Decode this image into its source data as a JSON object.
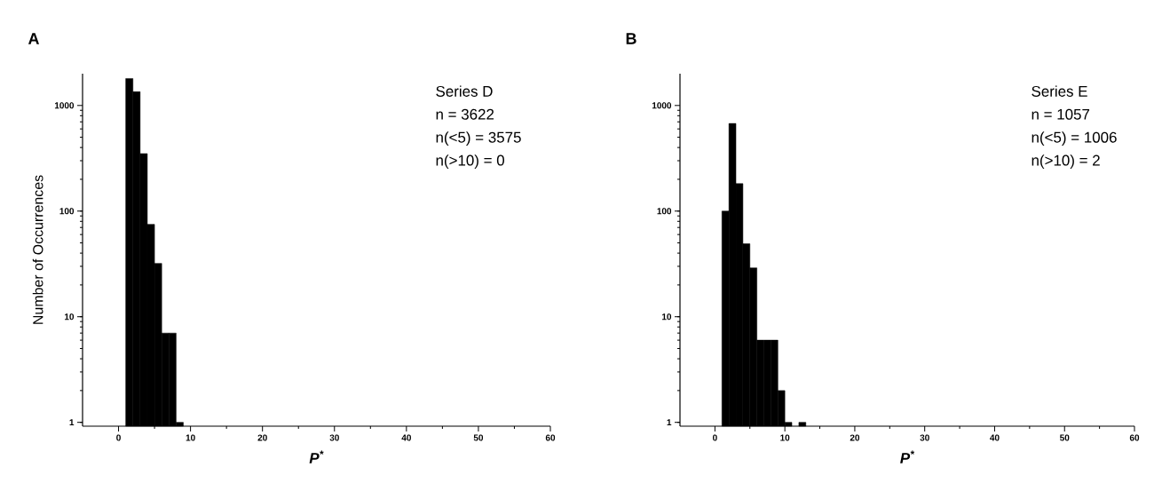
{
  "chart_data": [
    {
      "type": "histogram",
      "title": "A",
      "xlabel": "P$^{*}$",
      "ylabel": "Number of Occurrences",
      "bins": [
        1,
        2,
        3,
        4,
        5,
        6,
        7,
        8,
        9
      ],
      "values": [
        1800,
        1350,
        350,
        75,
        32,
        7,
        7,
        1
      ],
      "color": "#000000",
      "xlim": [
        -5,
        60
      ],
      "ylim": [
        0.92,
        2000
      ],
      "xticks": [
        0,
        10,
        20,
        30,
        40,
        50,
        60
      ],
      "yticks": [
        1,
        10,
        100,
        1000
      ],
      "log": "y",
      "annotations": [
        "Series D",
        "n = 3622",
        "n(<5) = 3575",
        "n(>10) = 0"
      ]
    },
    {
      "type": "histogram",
      "title": "B",
      "xlabel": "P$^{*}$",
      "bins": [
        1,
        2,
        3,
        4,
        5,
        6,
        7,
        8,
        9,
        10,
        11,
        12,
        13
      ],
      "values": [
        100,
        675,
        182,
        49,
        29,
        6,
        6,
        6,
        2,
        1,
        null,
        1
      ],
      "color": "#000000",
      "xlim": [
        -5,
        60
      ],
      "ylim": [
        0.92,
        2000
      ],
      "xticks": [
        0,
        10,
        20,
        30,
        40,
        50,
        60
      ],
      "yticks": [
        1,
        10,
        100,
        1000
      ],
      "log": "y",
      "annotations": [
        "Series E",
        "n = 1057",
        "n(<5) = 1006",
        "n(>10) = 2"
      ]
    }
  ]
}
